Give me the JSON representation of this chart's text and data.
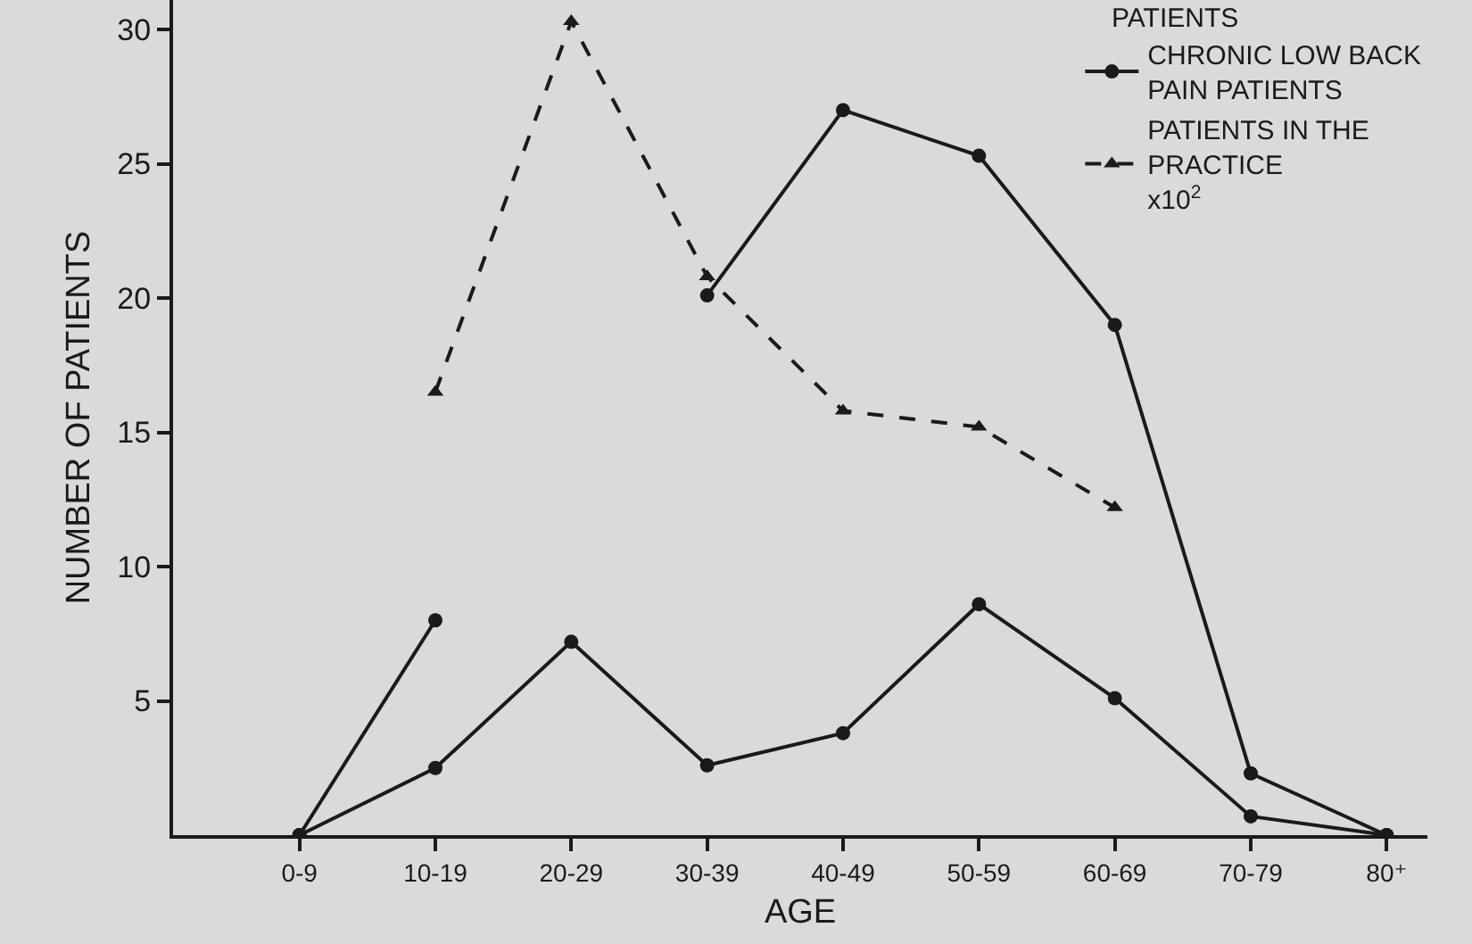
{
  "chart_data": {
    "type": "line",
    "xlabel": "AGE",
    "ylabel": "NUMBER OF PATIENTS",
    "categories": [
      "0-9",
      "10-19",
      "20-29",
      "30-39",
      "40-49",
      "50-59",
      "60-69",
      "70-79",
      "80⁺"
    ],
    "ylim": [
      0,
      31.1
    ],
    "yticks": [
      5,
      10,
      15,
      20,
      25,
      30
    ],
    "grid": false,
    "legend": "top right",
    "annotations": [
      "PATIENTS"
    ],
    "series": [
      {
        "color": "#1a1a1a",
        "marker": "circle",
        "line_style": "solid",
        "values": [
          0,
          8.0,
          null,
          20.1,
          27.0,
          25.3,
          19.0,
          2.3,
          0
        ]
      },
      {
        "name": "CHRONIC LOW BACK PAIN PATIENTS",
        "color": "#1a1a1a",
        "marker": "circle",
        "line_style": "solid",
        "values": [
          0,
          2.5,
          7.2,
          2.6,
          3.8,
          8.6,
          5.1,
          0.7,
          0
        ]
      },
      {
        "name": "PATIENTS IN THE PRACTICE x10$^{2}$",
        "color": "#1a1a1a",
        "marker": "triangle",
        "line_style": "dashed",
        "values": [
          null,
          16.5,
          30.3,
          20.8,
          15.8,
          15.2,
          12.2,
          null,
          null
        ]
      }
    ]
  }
}
